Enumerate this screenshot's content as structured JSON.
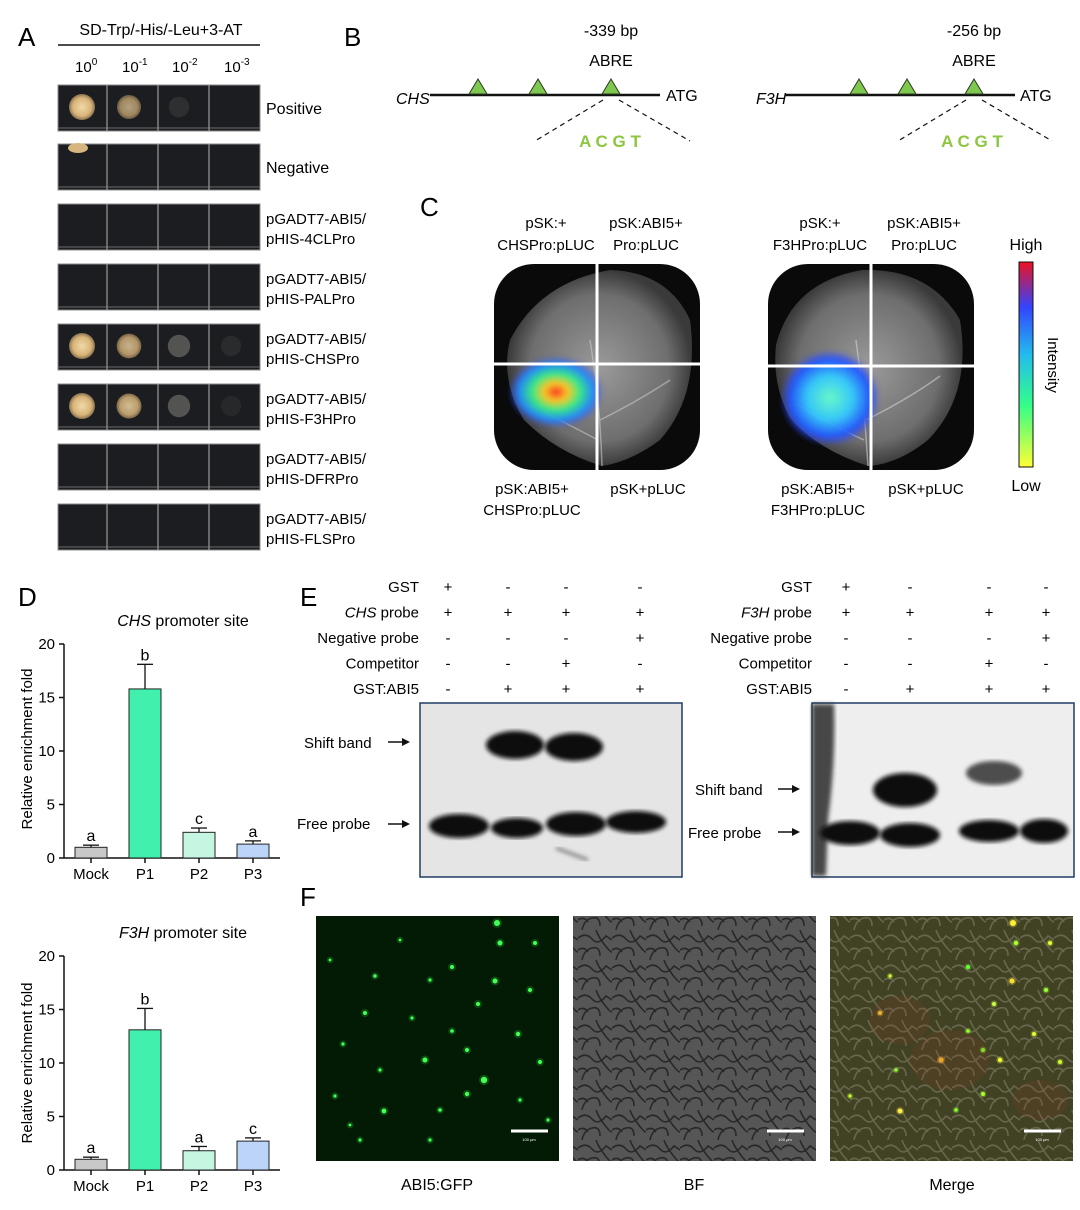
{
  "panelA": {
    "letter": "A",
    "header": "SD-Trp/-His/-Leu+3-AT",
    "dilutions": [
      {
        "base": "10",
        "exp": "0"
      },
      {
        "base": "10",
        "exp": "-1"
      },
      {
        "base": "10",
        "exp": "-2"
      },
      {
        "base": "10",
        "exp": "-3"
      }
    ],
    "rows": [
      {
        "l1": "Positive",
        "l2": "",
        "growth": [
          1.0,
          0.7,
          0.15,
          0.0
        ]
      },
      {
        "l1": "Negative",
        "l2": "",
        "growth": [
          0.0,
          0.0,
          0.0,
          0.0
        ]
      },
      {
        "l1": "pGADT7-ABI5/",
        "l2": "pHIS-4CLPro",
        "growth": [
          0.0,
          0.0,
          0.0,
          0.0
        ]
      },
      {
        "l1": "pGADT7-ABI5/",
        "l2": "pHIS-PALPro",
        "growth": [
          0.0,
          0.0,
          0.0,
          0.0
        ]
      },
      {
        "l1": "pGADT7-ABI5/",
        "l2": "pHIS-CHSPro",
        "growth": [
          1.0,
          0.8,
          0.45,
          0.12
        ]
      },
      {
        "l1": "pGADT7-ABI5/",
        "l2": "pHIS-F3HPro",
        "growth": [
          1.0,
          0.85,
          0.45,
          0.1
        ]
      },
      {
        "l1": "pGADT7-ABI5/",
        "l2": "pHIS-DFRPro",
        "growth": [
          0.0,
          0.0,
          0.0,
          0.0
        ]
      },
      {
        "l1": "pGADT7-ABI5/",
        "l2": "pHIS-FLSPro",
        "growth": [
          0.0,
          0.0,
          0.0,
          0.0
        ]
      }
    ]
  },
  "panelB": {
    "letter": "B",
    "maps": [
      {
        "gene": "CHS",
        "position": "-339 bp",
        "element": "ABRE",
        "end": "ATG",
        "motif": "A C G T"
      },
      {
        "gene": "F3H",
        "position": "-256 bp",
        "element": "ABRE",
        "end": "ATG",
        "motif": "A C G T"
      }
    ]
  },
  "panelC": {
    "letter": "C",
    "leaves": [
      {
        "tl1": "pSK:+",
        "tl2": "CHSPro:pLUC",
        "tr1": "pSK:ABI5+",
        "tr2": "Pro:pLUC",
        "bl1": "pSK:ABI5+",
        "bl2": "CHSPro:pLUC",
        "br": "pSK+pLUC"
      },
      {
        "tl1": "pSK:+",
        "tl2": "F3HPro:pLUC",
        "tr1": "pSK:ABI5+",
        "tr2": "Pro:pLUC",
        "bl1": "pSK:ABI5+",
        "bl2": "F3HPro:pLUC",
        "br": "pSK+pLUC"
      }
    ],
    "scale": {
      "high": "High",
      "low": "Low",
      "label": "Intensity"
    }
  },
  "panelD": {
    "letter": "D",
    "charts": [
      {
        "gene": "CHS",
        "title_rest": " promoter site",
        "ylabel": "Relative enrichment fold"
      },
      {
        "gene": "F3H",
        "title_rest": " promoter site",
        "ylabel": "Relative enrichment fold"
      }
    ]
  },
  "chart_data": [
    {
      "type": "bar",
      "title": "CHS promoter site",
      "ylabel": "Relative enrichment fold",
      "xlabel": "",
      "categories": [
        "Mock",
        "P1",
        "P2",
        "P3"
      ],
      "values": [
        1.0,
        15.8,
        2.4,
        1.3
      ],
      "errors": [
        0.2,
        2.3,
        0.4,
        0.3
      ],
      "letters": [
        "a",
        "b",
        "c",
        "a"
      ],
      "colors": [
        "#c8c8c8",
        "#42f0ad",
        "#c5f6e2",
        "#bcd4f7"
      ],
      "ylim": [
        0,
        20
      ],
      "yticks": [
        0,
        5,
        10,
        15,
        20
      ],
      "grid": false
    },
    {
      "type": "bar",
      "title": "F3H promoter site",
      "ylabel": "Relative enrichment fold",
      "xlabel": "",
      "categories": [
        "Mock",
        "P1",
        "P2",
        "P3"
      ],
      "values": [
        1.0,
        13.1,
        1.8,
        2.7
      ],
      "errors": [
        0.2,
        2.0,
        0.4,
        0.3
      ],
      "letters": [
        "a",
        "b",
        "a",
        "c"
      ],
      "colors": [
        "#c8c8c8",
        "#42f0ad",
        "#c5f6e2",
        "#bcd4f7"
      ],
      "ylim": [
        0,
        20
      ],
      "yticks": [
        0,
        5,
        10,
        15,
        20
      ],
      "grid": false
    }
  ],
  "panelE": {
    "letter": "E",
    "blots": [
      {
        "rows": [
          {
            "label": "GST",
            "italic": "",
            "signs": [
              "+",
              "-",
              "-",
              "-"
            ]
          },
          {
            "label": " probe",
            "italic": "CHS",
            "signs": [
              "+",
              "+",
              "+",
              "+"
            ]
          },
          {
            "label": "Negative probe",
            "italic": "",
            "signs": [
              "-",
              "-",
              "-",
              "+"
            ]
          },
          {
            "label": "Competitor",
            "italic": "",
            "signs": [
              "-",
              "-",
              "+",
              "-"
            ]
          },
          {
            "label": "GST:ABI5",
            "italic": "",
            "signs": [
              "-",
              "+",
              "+",
              "+"
            ]
          }
        ],
        "shift_label": "Shift band",
        "free_label": "Free probe"
      },
      {
        "rows": [
          {
            "label": "GST",
            "italic": "",
            "signs": [
              "+",
              "-",
              "-",
              "-"
            ]
          },
          {
            "label": " probe",
            "italic": "F3H",
            "signs": [
              "+",
              "+",
              "+",
              "+"
            ]
          },
          {
            "label": "Negative probe",
            "italic": "",
            "signs": [
              "-",
              "-",
              "-",
              "+"
            ]
          },
          {
            "label": "Competitor",
            "italic": "",
            "signs": [
              "-",
              "-",
              "+",
              "-"
            ]
          },
          {
            "label": "GST:ABI5",
            "italic": "",
            "signs": [
              "-",
              "+",
              "+",
              "+"
            ]
          }
        ],
        "shift_label": "Shift band",
        "free_label": "Free probe"
      }
    ]
  },
  "panelF": {
    "letter": "F",
    "images": [
      {
        "caption": "ABI5:GFP",
        "scale_text": "100 μm"
      },
      {
        "caption": "BF",
        "scale_text": "100 μm"
      },
      {
        "caption": "Merge",
        "scale_text": "100 μm"
      }
    ]
  },
  "colors": {
    "abre_green": "#7ec850",
    "motif_green": "#8dc63f",
    "plate_dark": "#1c1d20",
    "colony": "#d7b57e",
    "gfp": "#22dd33"
  }
}
